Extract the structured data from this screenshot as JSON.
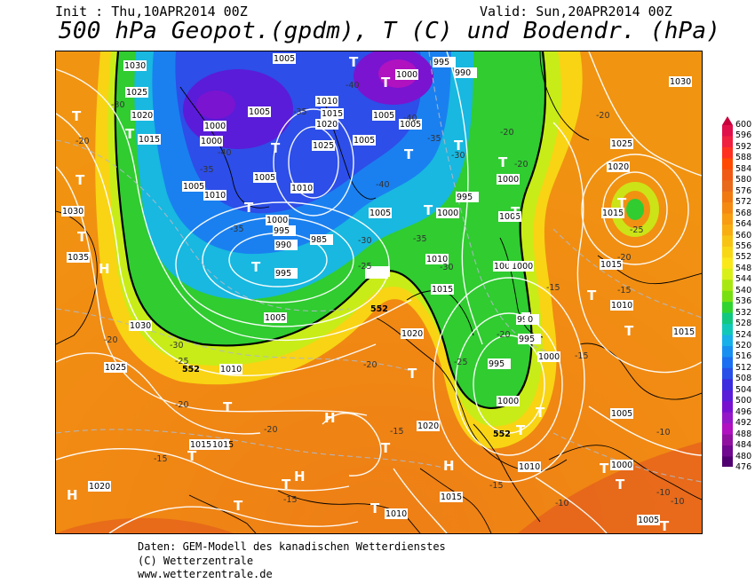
{
  "header": {
    "init": "Init : Thu,10APR2014 00Z",
    "valid": "Valid: Sun,20APR2014 00Z",
    "title": "500 hPa Geopot.(gpdm), T (C) und Bodendr. (hPa)"
  },
  "legend": {
    "values": [
      "600",
      "596",
      "592",
      "588",
      "584",
      "580",
      "576",
      "572",
      "568",
      "564",
      "560",
      "556",
      "552",
      "548",
      "544",
      "540",
      "536",
      "532",
      "528",
      "524",
      "520",
      "516",
      "512",
      "508",
      "504",
      "500",
      "496",
      "492",
      "488",
      "484",
      "480",
      "476"
    ],
    "colors": [
      "#c8003c",
      "#e0104a",
      "#f02040",
      "#ff3020",
      "#ff4a00",
      "#f05a14",
      "#e86a1a",
      "#f07a10",
      "#f58a10",
      "#f89c10",
      "#f8ae10",
      "#f8c414",
      "#f8d814",
      "#fae81a",
      "#d8f018",
      "#a8e810",
      "#78e010",
      "#30d430",
      "#10c880",
      "#10c8b8",
      "#18b0e8",
      "#1890f0",
      "#1a70f0",
      "#2850e8",
      "#3c2ce0",
      "#5a1cd8",
      "#7810d0",
      "#9418c8",
      "#b010c0",
      "#9010a0",
      "#700890",
      "#500070"
    ]
  },
  "map": {
    "pressure_labels": [
      "1030",
      "1025",
      "1020",
      "1015",
      "1005",
      "1000",
      "1010",
      "995",
      "990",
      "1035",
      "985"
    ],
    "temperature_labels": [
      "-30",
      "-35",
      "-40",
      "-25",
      "-20",
      "-15",
      "-10"
    ],
    "centers": {
      "low": "T",
      "high": "H"
    },
    "geopotential_label": "552",
    "colors": {
      "deep_low": "#5a1cd8",
      "low": "#1a70f0",
      "mid": "#30d430",
      "ridge": "#f8d814",
      "warm": "#f07a10",
      "hot": "#e05020"
    }
  },
  "footer": {
    "line1": "Daten: GEM-Modell des kanadischen Wetterdienstes",
    "line2": "(C) Wetterzentrale",
    "line3": "www.wetterzentrale.de"
  }
}
